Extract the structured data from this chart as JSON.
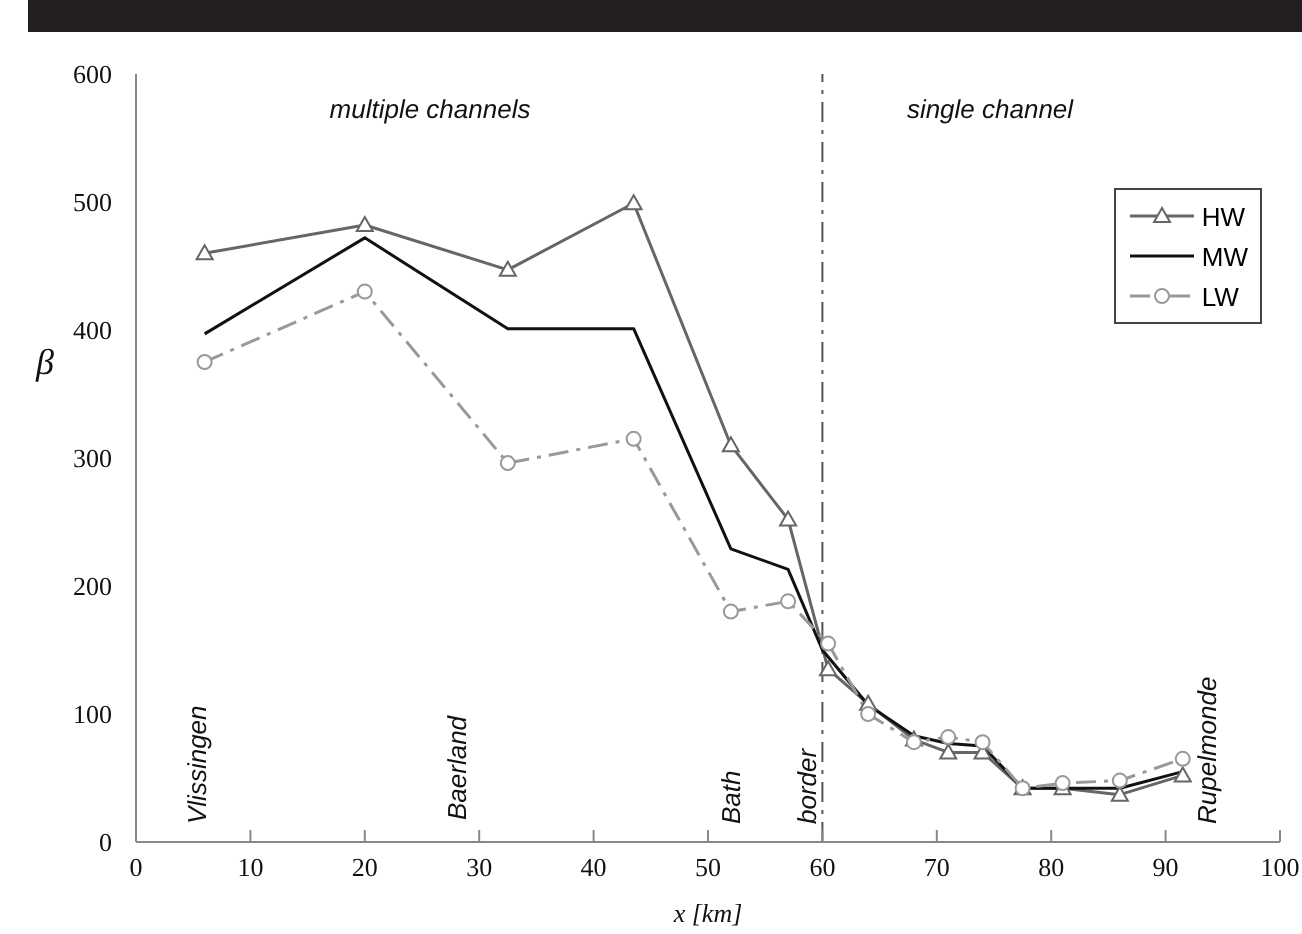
{
  "chart_data": {
    "type": "line",
    "xlabel": "x [km]",
    "ylabel": "β",
    "xlim": [
      0,
      100
    ],
    "xticks": [
      0,
      10,
      20,
      30,
      40,
      50,
      60,
      70,
      80,
      90,
      100
    ],
    "ylim": [
      0,
      600
    ],
    "yticks": [
      0,
      100,
      200,
      300,
      400,
      500,
      600
    ],
    "grid": false,
    "legend": "top right",
    "series": [
      {
        "name": "HW",
        "color": "#666666",
        "marker": "triangle",
        "line_style": "solid",
        "x": [
          6,
          20,
          32.5,
          43.5,
          52,
          57,
          60.5,
          64,
          68,
          71,
          74,
          77.5,
          81,
          86,
          91.5
        ],
        "values": [
          460,
          482,
          447,
          499,
          310,
          252,
          135,
          108,
          80,
          70,
          70,
          42,
          42,
          37,
          52
        ]
      },
      {
        "name": "MW",
        "color": "#111111",
        "marker": "none",
        "line_style": "solid",
        "x": [
          6,
          20,
          32.5,
          43.5,
          52,
          57,
          60,
          64,
          68,
          71,
          74,
          77.5,
          81,
          86,
          91.5
        ],
        "values": [
          397,
          472,
          401,
          401,
          229,
          213,
          150,
          107,
          83,
          77,
          75,
          42,
          42,
          42,
          55
        ]
      },
      {
        "name": "LW",
        "color": "#999999",
        "marker": "circle",
        "line_style": "dashed",
        "x": [
          6,
          20,
          32.5,
          43.5,
          52,
          57,
          60.5,
          64,
          68,
          71,
          74,
          77.5,
          81,
          86,
          91.5
        ],
        "values": [
          375,
          430,
          296,
          315,
          180,
          188,
          155,
          100,
          78,
          82,
          78,
          42,
          46,
          48,
          65
        ]
      }
    ],
    "ref_lines": [
      {
        "axis": "x",
        "value": 60,
        "color": "#555555",
        "line_style": "dashed"
      }
    ],
    "annotations": [
      "multiple channels",
      "single channel",
      "Vlissingen",
      "Baerland",
      "Bath",
      "border",
      "Rupelmonde"
    ]
  }
}
